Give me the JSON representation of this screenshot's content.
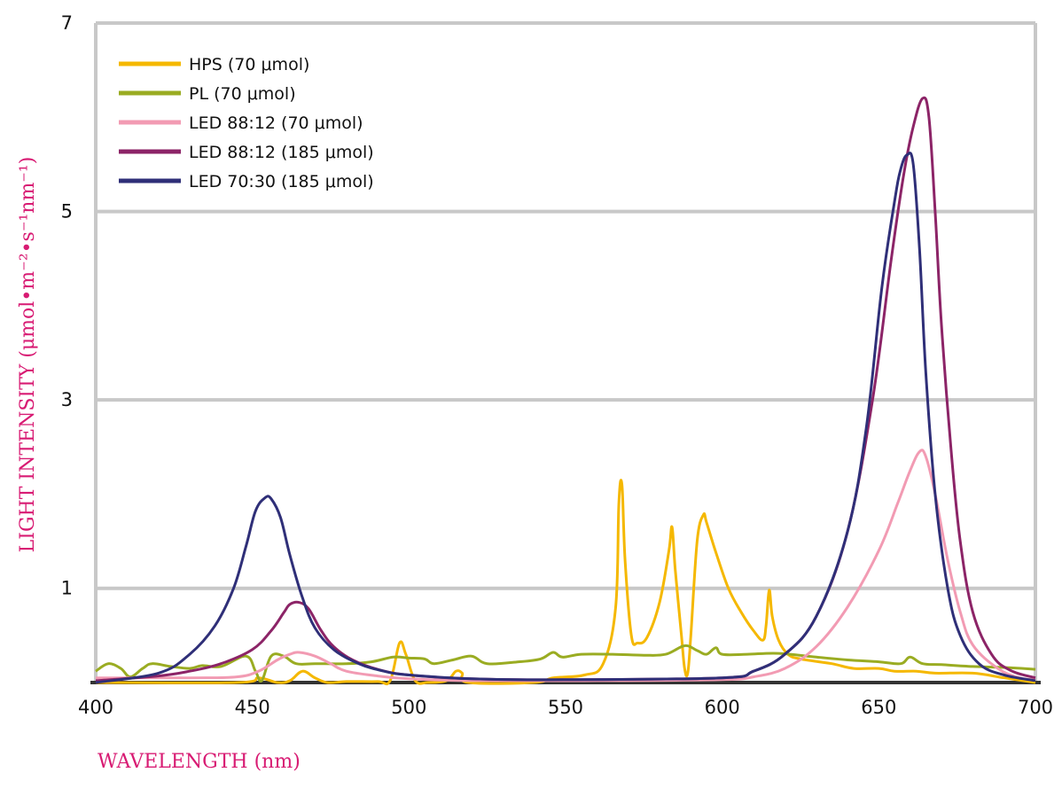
{
  "chart_data": {
    "type": "line",
    "xlabel": "WAVELENGTH (nm)",
    "ylabel": "LIGHT INTENSITY (μmol•m⁻²•s⁻¹nm⁻¹)",
    "xlim": [
      400,
      700
    ],
    "ylim": [
      0,
      7
    ],
    "xticks": [
      400,
      450,
      500,
      550,
      600,
      650,
      700
    ],
    "yticks": [
      1,
      3,
      5,
      7
    ],
    "grid": "horizontal",
    "legend_position": "top-left",
    "axis_label_color": "#d81b73",
    "series": [
      {
        "name": "HPS (70 μmol)",
        "color": "#f5b800",
        "points": [
          [
            400,
            0.0
          ],
          [
            445,
            0.0
          ],
          [
            452,
            0.05
          ],
          [
            458,
            0.0
          ],
          [
            462,
            0.02
          ],
          [
            466,
            0.12
          ],
          [
            470,
            0.05
          ],
          [
            474,
            0.0
          ],
          [
            480,
            0.01
          ],
          [
            490,
            0.01
          ],
          [
            494,
            0.02
          ],
          [
            497,
            0.42
          ],
          [
            499,
            0.3
          ],
          [
            502,
            0.02
          ],
          [
            506,
            0.0
          ],
          [
            512,
            0.02
          ],
          [
            515,
            0.12
          ],
          [
            517,
            0.1
          ],
          [
            519,
            0.0
          ],
          [
            540,
            0.0
          ],
          [
            546,
            0.05
          ],
          [
            556,
            0.08
          ],
          [
            562,
            0.2
          ],
          [
            566,
            0.8
          ],
          [
            567,
            1.9
          ],
          [
            568,
            2.1
          ],
          [
            569,
            1.3
          ],
          [
            571,
            0.5
          ],
          [
            573,
            0.42
          ],
          [
            576,
            0.48
          ],
          [
            580,
            0.85
          ],
          [
            583,
            1.4
          ],
          [
            584,
            1.65
          ],
          [
            585,
            1.2
          ],
          [
            587,
            0.5
          ],
          [
            588,
            0.15
          ],
          [
            589,
            0.1
          ],
          [
            590,
            0.5
          ],
          [
            592,
            1.5
          ],
          [
            594,
            1.78
          ],
          [
            595,
            1.7
          ],
          [
            598,
            1.38
          ],
          [
            602,
            1.0
          ],
          [
            606,
            0.75
          ],
          [
            610,
            0.55
          ],
          [
            613,
            0.45
          ],
          [
            614,
            0.6
          ],
          [
            615,
            0.98
          ],
          [
            616,
            0.7
          ],
          [
            618,
            0.45
          ],
          [
            621,
            0.3
          ],
          [
            625,
            0.25
          ],
          [
            635,
            0.2
          ],
          [
            642,
            0.15
          ],
          [
            650,
            0.15
          ],
          [
            655,
            0.12
          ],
          [
            662,
            0.12
          ],
          [
            668,
            0.1
          ],
          [
            680,
            0.1
          ],
          [
            690,
            0.05
          ],
          [
            700,
            0.0
          ]
        ]
      },
      {
        "name": "PL (70 μmol)",
        "color": "#9aac22",
        "points": [
          [
            400,
            0.12
          ],
          [
            404,
            0.2
          ],
          [
            408,
            0.15
          ],
          [
            411,
            0.06
          ],
          [
            415,
            0.15
          ],
          [
            418,
            0.2
          ],
          [
            424,
            0.17
          ],
          [
            430,
            0.15
          ],
          [
            434,
            0.18
          ],
          [
            440,
            0.17
          ],
          [
            448,
            0.28
          ],
          [
            451,
            0.12
          ],
          [
            453,
            0.02
          ],
          [
            456,
            0.28
          ],
          [
            460,
            0.28
          ],
          [
            464,
            0.2
          ],
          [
            470,
            0.2
          ],
          [
            480,
            0.2
          ],
          [
            488,
            0.22
          ],
          [
            495,
            0.27
          ],
          [
            500,
            0.26
          ],
          [
            505,
            0.25
          ],
          [
            508,
            0.2
          ],
          [
            514,
            0.24
          ],
          [
            520,
            0.28
          ],
          [
            525,
            0.2
          ],
          [
            535,
            0.22
          ],
          [
            542,
            0.25
          ],
          [
            546,
            0.32
          ],
          [
            549,
            0.27
          ],
          [
            555,
            0.3
          ],
          [
            565,
            0.3
          ],
          [
            575,
            0.29
          ],
          [
            582,
            0.3
          ],
          [
            588,
            0.39
          ],
          [
            592,
            0.34
          ],
          [
            595,
            0.3
          ],
          [
            598,
            0.37
          ],
          [
            600,
            0.3
          ],
          [
            608,
            0.3
          ],
          [
            618,
            0.31
          ],
          [
            630,
            0.27
          ],
          [
            640,
            0.24
          ],
          [
            650,
            0.22
          ],
          [
            657,
            0.2
          ],
          [
            660,
            0.27
          ],
          [
            664,
            0.2
          ],
          [
            670,
            0.19
          ],
          [
            680,
            0.17
          ],
          [
            690,
            0.16
          ],
          [
            700,
            0.14
          ]
        ]
      },
      {
        "name": "LED 88:12 (70 μmol)",
        "color": "#f29bb3",
        "points": [
          [
            400,
            0.05
          ],
          [
            430,
            0.05
          ],
          [
            445,
            0.06
          ],
          [
            452,
            0.12
          ],
          [
            458,
            0.24
          ],
          [
            462,
            0.3
          ],
          [
            465,
            0.32
          ],
          [
            470,
            0.28
          ],
          [
            475,
            0.2
          ],
          [
            480,
            0.12
          ],
          [
            490,
            0.07
          ],
          [
            500,
            0.04
          ],
          [
            520,
            0.02
          ],
          [
            560,
            0.02
          ],
          [
            600,
            0.03
          ],
          [
            610,
            0.06
          ],
          [
            620,
            0.15
          ],
          [
            630,
            0.38
          ],
          [
            640,
            0.8
          ],
          [
            650,
            1.4
          ],
          [
            656,
            1.9
          ],
          [
            660,
            2.25
          ],
          [
            663,
            2.45
          ],
          [
            665,
            2.4
          ],
          [
            668,
            2.0
          ],
          [
            672,
            1.3
          ],
          [
            676,
            0.75
          ],
          [
            680,
            0.4
          ],
          [
            688,
            0.15
          ],
          [
            695,
            0.05
          ],
          [
            700,
            0.03
          ]
        ]
      },
      {
        "name": "LED 88:12 (185 μmol)",
        "color": "#8c2467",
        "points": [
          [
            400,
            0.02
          ],
          [
            420,
            0.07
          ],
          [
            430,
            0.12
          ],
          [
            440,
            0.2
          ],
          [
            450,
            0.35
          ],
          [
            456,
            0.55
          ],
          [
            460,
            0.74
          ],
          [
            462,
            0.83
          ],
          [
            465,
            0.85
          ],
          [
            468,
            0.78
          ],
          [
            472,
            0.55
          ],
          [
            476,
            0.38
          ],
          [
            482,
            0.24
          ],
          [
            490,
            0.14
          ],
          [
            500,
            0.08
          ],
          [
            520,
            0.04
          ],
          [
            550,
            0.03
          ],
          [
            600,
            0.05
          ],
          [
            610,
            0.12
          ],
          [
            620,
            0.3
          ],
          [
            630,
            0.7
          ],
          [
            640,
            1.6
          ],
          [
            648,
            3.0
          ],
          [
            654,
            4.5
          ],
          [
            658,
            5.4
          ],
          [
            661,
            5.9
          ],
          [
            664,
            6.2
          ],
          [
            666,
            6.0
          ],
          [
            668,
            5.0
          ],
          [
            670,
            3.8
          ],
          [
            673,
            2.5
          ],
          [
            676,
            1.5
          ],
          [
            680,
            0.75
          ],
          [
            686,
            0.3
          ],
          [
            692,
            0.13
          ],
          [
            700,
            0.05
          ]
        ]
      },
      {
        "name": "LED 70:30 (185 μmol)",
        "color": "#2f2f78",
        "points": [
          [
            400,
            0.0
          ],
          [
            420,
            0.1
          ],
          [
            430,
            0.3
          ],
          [
            438,
            0.6
          ],
          [
            444,
            1.0
          ],
          [
            448,
            1.45
          ],
          [
            451,
            1.82
          ],
          [
            454,
            1.96
          ],
          [
            456,
            1.95
          ],
          [
            459,
            1.75
          ],
          [
            462,
            1.35
          ],
          [
            466,
            0.9
          ],
          [
            470,
            0.58
          ],
          [
            476,
            0.35
          ],
          [
            484,
            0.2
          ],
          [
            492,
            0.12
          ],
          [
            500,
            0.08
          ],
          [
            520,
            0.04
          ],
          [
            550,
            0.03
          ],
          [
            600,
            0.05
          ],
          [
            610,
            0.12
          ],
          [
            620,
            0.3
          ],
          [
            630,
            0.7
          ],
          [
            640,
            1.6
          ],
          [
            646,
            2.7
          ],
          [
            651,
            4.2
          ],
          [
            655,
            5.1
          ],
          [
            657,
            5.45
          ],
          [
            659,
            5.6
          ],
          [
            661,
            5.5
          ],
          [
            663,
            4.6
          ],
          [
            665,
            3.3
          ],
          [
            668,
            2.0
          ],
          [
            672,
            1.0
          ],
          [
            676,
            0.5
          ],
          [
            682,
            0.2
          ],
          [
            690,
            0.08
          ],
          [
            700,
            0.02
          ]
        ]
      }
    ]
  }
}
